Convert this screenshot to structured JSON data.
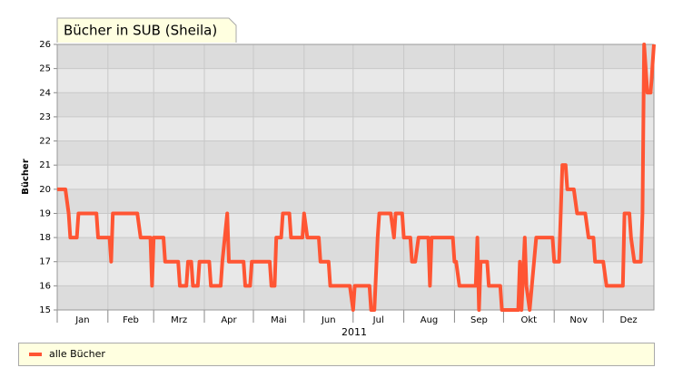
{
  "chart_data": {
    "type": "line",
    "title": "Bücher in SUB (Sheila)",
    "ylabel": "Bücher",
    "xlabel": "2011",
    "x": [
      0,
      5,
      7,
      8,
      12,
      13,
      24,
      25,
      32,
      33,
      34,
      49,
      51,
      57,
      58,
      59,
      65,
      66,
      74,
      75,
      79,
      80,
      82,
      83,
      86,
      87,
      93,
      94,
      100,
      101,
      104,
      105,
      114,
      115,
      118,
      119,
      130,
      131,
      133,
      134,
      137,
      138,
      142,
      143,
      150,
      151,
      153,
      160,
      161,
      166,
      167,
      179,
      181,
      182,
      191,
      192,
      194,
      196,
      197,
      204,
      206,
      207,
      211,
      212,
      216,
      217,
      219,
      221,
      227,
      228,
      229,
      242,
      243,
      244,
      246,
      256,
      257,
      258,
      259,
      263,
      264,
      271,
      272,
      282,
      283,
      284,
      286,
      287,
      289,
      293,
      303,
      304,
      307,
      309,
      311,
      312,
      316,
      318,
      323,
      325,
      328,
      329,
      334,
      336,
      346,
      347,
      350,
      351,
      353,
      357,
      358,
      359,
      361,
      363,
      365
    ],
    "series": [
      {
        "name": "alle Bücher",
        "color": "#ff5533",
        "values": [
          20,
          20,
          19,
          18,
          18,
          19,
          19,
          18,
          18,
          17,
          19,
          19,
          18,
          18,
          16,
          18,
          18,
          17,
          17,
          16,
          16,
          17,
          17,
          16,
          16,
          17,
          17,
          16,
          16,
          17,
          19,
          17,
          17,
          16,
          16,
          17,
          17,
          16,
          16,
          18,
          18,
          19,
          19,
          18,
          18,
          19,
          18,
          18,
          17,
          17,
          16,
          16,
          15,
          16,
          16,
          15,
          15,
          18,
          19,
          19,
          18,
          19,
          19,
          18,
          18,
          17,
          17,
          18,
          18,
          16,
          18,
          18,
          17,
          17,
          16,
          16,
          18,
          15,
          17,
          17,
          16,
          16,
          15,
          15,
          17,
          15,
          18,
          16,
          15,
          18,
          18,
          17,
          17,
          21,
          21,
          20,
          20,
          19,
          19,
          18,
          18,
          17,
          17,
          16,
          16,
          19,
          19,
          18,
          17,
          17,
          19,
          26,
          24,
          24,
          26
        ]
      }
    ],
    "xlim": [
      0,
      365
    ],
    "xticks": [
      {
        "value": 0,
        "label": "Jan"
      },
      {
        "value": 31,
        "label": "Feb"
      },
      {
        "value": 59,
        "label": "Mrz"
      },
      {
        "value": 90,
        "label": "Apr"
      },
      {
        "value": 120,
        "label": "Mai"
      },
      {
        "value": 151,
        "label": "Jun"
      },
      {
        "value": 181,
        "label": "Jul"
      },
      {
        "value": 212,
        "label": "Aug"
      },
      {
        "value": 243,
        "label": "Sep"
      },
      {
        "value": 273,
        "label": "Okt"
      },
      {
        "value": 304,
        "label": "Nov"
      },
      {
        "value": 334,
        "label": "Dez"
      }
    ],
    "ylim": [
      15,
      26
    ],
    "yticks": [
      15,
      16,
      17,
      18,
      19,
      20,
      21,
      22,
      23,
      24,
      25,
      26
    ],
    "grid": true
  }
}
